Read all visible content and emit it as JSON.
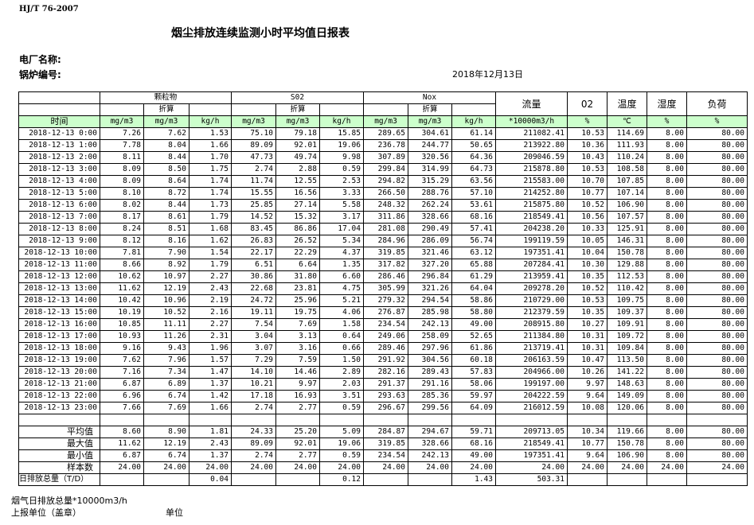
{
  "header": {
    "standard": "HJ/T  76-2007",
    "title": "烟尘排放连续监测小时平均值日报表",
    "plant_label": "电厂名称:",
    "boiler_label": "锅炉编号:",
    "date": "2018年12月13日"
  },
  "table": {
    "time_header": "时间",
    "group_headers": [
      "颗粒物",
      "S02",
      "Nox"
    ],
    "converted_label": "折算",
    "single_headers": [
      "流量",
      "02",
      "温度",
      "湿度",
      "负荷"
    ],
    "units": [
      "mg/m3",
      "mg/m3",
      "kg/h",
      "mg/m3",
      "mg/m3",
      "kg/h",
      "mg/m3",
      "mg/m3",
      "kg/h",
      "*10000m3/h",
      "%",
      "℃",
      "%",
      "%"
    ],
    "rows": [
      [
        "2018-12-13 0:00",
        "7.26",
        "7.62",
        "1.53",
        "75.10",
        "79.18",
        "15.85",
        "289.65",
        "304.61",
        "61.14",
        "211082.41",
        "10.53",
        "114.69",
        "8.00",
        "80.00"
      ],
      [
        "2018-12-13 1:00",
        "7.78",
        "8.04",
        "1.66",
        "89.09",
        "92.01",
        "19.06",
        "236.78",
        "244.77",
        "50.65",
        "213922.80",
        "10.36",
        "111.93",
        "8.00",
        "80.00"
      ],
      [
        "2018-12-13 2:00",
        "8.11",
        "8.44",
        "1.70",
        "47.73",
        "49.74",
        "9.98",
        "307.89",
        "320.56",
        "64.36",
        "209046.59",
        "10.43",
        "110.24",
        "8.00",
        "80.00"
      ],
      [
        "2018-12-13 3:00",
        "8.09",
        "8.50",
        "1.75",
        "2.74",
        "2.88",
        "0.59",
        "299.84",
        "314.99",
        "64.73",
        "215878.80",
        "10.53",
        "108.58",
        "8.00",
        "80.00"
      ],
      [
        "2018-12-13 4:00",
        "8.09",
        "8.64",
        "1.74",
        "11.74",
        "12.55",
        "2.53",
        "294.82",
        "315.29",
        "63.56",
        "215583.00",
        "10.70",
        "107.85",
        "8.00",
        "80.00"
      ],
      [
        "2018-12-13 5:00",
        "8.10",
        "8.72",
        "1.74",
        "15.55",
        "16.56",
        "3.33",
        "266.50",
        "288.76",
        "57.10",
        "214252.80",
        "10.77",
        "107.14",
        "8.00",
        "80.00"
      ],
      [
        "2018-12-13 6:00",
        "8.02",
        "8.44",
        "1.73",
        "25.85",
        "27.14",
        "5.58",
        "248.32",
        "262.24",
        "53.61",
        "215875.80",
        "10.52",
        "106.90",
        "8.00",
        "80.00"
      ],
      [
        "2018-12-13 7:00",
        "8.17",
        "8.61",
        "1.79",
        "14.52",
        "15.32",
        "3.17",
        "311.86",
        "328.66",
        "68.16",
        "218549.41",
        "10.56",
        "107.57",
        "8.00",
        "80.00"
      ],
      [
        "2018-12-13 8:00",
        "8.24",
        "8.51",
        "1.68",
        "83.45",
        "86.86",
        "17.04",
        "281.08",
        "290.49",
        "57.41",
        "204238.20",
        "10.33",
        "125.91",
        "8.00",
        "80.00"
      ],
      [
        "2018-12-13 9:00",
        "8.12",
        "8.16",
        "1.62",
        "26.83",
        "26.52",
        "5.34",
        "284.96",
        "286.09",
        "56.74",
        "199119.59",
        "10.05",
        "146.31",
        "8.00",
        "80.00"
      ],
      [
        "2018-12-13 10:00",
        "7.81",
        "7.90",
        "1.54",
        "22.17",
        "22.29",
        "4.37",
        "319.85",
        "321.46",
        "63.12",
        "197351.41",
        "10.04",
        "150.78",
        "8.00",
        "80.00"
      ],
      [
        "2018-12-13 11:00",
        "8.66",
        "8.92",
        "1.79",
        "6.51",
        "6.64",
        "1.35",
        "317.82",
        "327.20",
        "65.88",
        "207284.41",
        "10.30",
        "129.88",
        "8.00",
        "80.00"
      ],
      [
        "2018-12-13 12:00",
        "10.62",
        "10.97",
        "2.27",
        "30.86",
        "31.80",
        "6.60",
        "286.46",
        "296.84",
        "61.29",
        "213959.41",
        "10.35",
        "112.53",
        "8.00",
        "80.00"
      ],
      [
        "2018-12-13 13:00",
        "11.62",
        "12.19",
        "2.43",
        "22.68",
        "23.81",
        "4.75",
        "305.99",
        "321.26",
        "64.04",
        "209278.20",
        "10.52",
        "110.42",
        "8.00",
        "80.00"
      ],
      [
        "2018-12-13 14:00",
        "10.42",
        "10.96",
        "2.19",
        "24.72",
        "25.96",
        "5.21",
        "279.32",
        "294.54",
        "58.86",
        "210729.00",
        "10.53",
        "109.75",
        "8.00",
        "80.00"
      ],
      [
        "2018-12-13 15:00",
        "10.19",
        "10.52",
        "2.16",
        "19.11",
        "19.75",
        "4.06",
        "276.87",
        "285.98",
        "58.80",
        "212379.59",
        "10.35",
        "109.37",
        "8.00",
        "80.00"
      ],
      [
        "2018-12-13 16:00",
        "10.85",
        "11.11",
        "2.27",
        "7.54",
        "7.69",
        "1.58",
        "234.54",
        "242.13",
        "49.00",
        "208915.80",
        "10.27",
        "109.91",
        "8.00",
        "80.00"
      ],
      [
        "2018-12-13 17:00",
        "10.93",
        "11.26",
        "2.31",
        "3.04",
        "3.13",
        "0.64",
        "249.06",
        "258.09",
        "52.65",
        "211384.80",
        "10.31",
        "109.72",
        "8.00",
        "80.00"
      ],
      [
        "2018-12-13 18:00",
        "9.16",
        "9.43",
        "1.96",
        "3.07",
        "3.16",
        "0.66",
        "289.46",
        "297.96",
        "61.86",
        "213719.41",
        "10.31",
        "109.84",
        "8.00",
        "80.00"
      ],
      [
        "2018-12-13 19:00",
        "7.62",
        "7.96",
        "1.57",
        "7.29",
        "7.59",
        "1.50",
        "291.92",
        "304.56",
        "60.18",
        "206163.59",
        "10.47",
        "113.50",
        "8.00",
        "80.00"
      ],
      [
        "2018-12-13 20:00",
        "7.16",
        "7.34",
        "1.47",
        "14.10",
        "14.46",
        "2.89",
        "282.16",
        "289.43",
        "57.83",
        "204966.00",
        "10.26",
        "141.22",
        "8.00",
        "80.00"
      ],
      [
        "2018-12-13 21:00",
        "6.87",
        "6.89",
        "1.37",
        "10.21",
        "9.97",
        "2.03",
        "291.37",
        "291.16",
        "58.06",
        "199197.00",
        "9.97",
        "148.63",
        "8.00",
        "80.00"
      ],
      [
        "2018-12-13 22:00",
        "6.96",
        "6.74",
        "1.42",
        "17.18",
        "16.93",
        "3.51",
        "293.63",
        "285.36",
        "59.97",
        "204222.59",
        "9.64",
        "149.09",
        "8.00",
        "80.00"
      ],
      [
        "2018-12-13 23:00",
        "7.66",
        "7.69",
        "1.66",
        "2.74",
        "2.77",
        "0.59",
        "296.67",
        "299.56",
        "64.09",
        "216012.59",
        "10.08",
        "120.06",
        "8.00",
        "80.00"
      ]
    ],
    "summary_rows": [
      [
        "平均值",
        "8.60",
        "8.90",
        "1.81",
        "24.33",
        "25.20",
        "5.09",
        "284.87",
        "294.67",
        "59.71",
        "209713.05",
        "10.34",
        "119.66",
        "8.00",
        "80.00"
      ],
      [
        "最大值",
        "11.62",
        "12.19",
        "2.43",
        "89.09",
        "92.01",
        "19.06",
        "319.85",
        "328.66",
        "68.16",
        "218549.41",
        "10.77",
        "150.78",
        "8.00",
        "80.00"
      ],
      [
        "最小值",
        "6.87",
        "6.74",
        "1.37",
        "2.74",
        "2.77",
        "0.59",
        "234.54",
        "242.13",
        "49.00",
        "197351.41",
        "9.64",
        "106.90",
        "8.00",
        "80.00"
      ],
      [
        "样本数",
        "24.00",
        "24.00",
        "24.00",
        "24.00",
        "24.00",
        "24.00",
        "24.00",
        "24.00",
        "24.00",
        "24.00",
        "24.00",
        "24.00",
        "24.00",
        "24.00"
      ]
    ],
    "total_row": [
      "日排放总量（T/D）",
      null,
      null,
      "0.04",
      null,
      null,
      "0.12",
      null,
      null,
      "1.43",
      "503.31",
      null,
      null,
      null,
      null
    ]
  },
  "footer": {
    "flue_total": "烟气日排放总量*10000m3/h",
    "reporter": "上报单位（盖章）",
    "unit": "单位"
  }
}
